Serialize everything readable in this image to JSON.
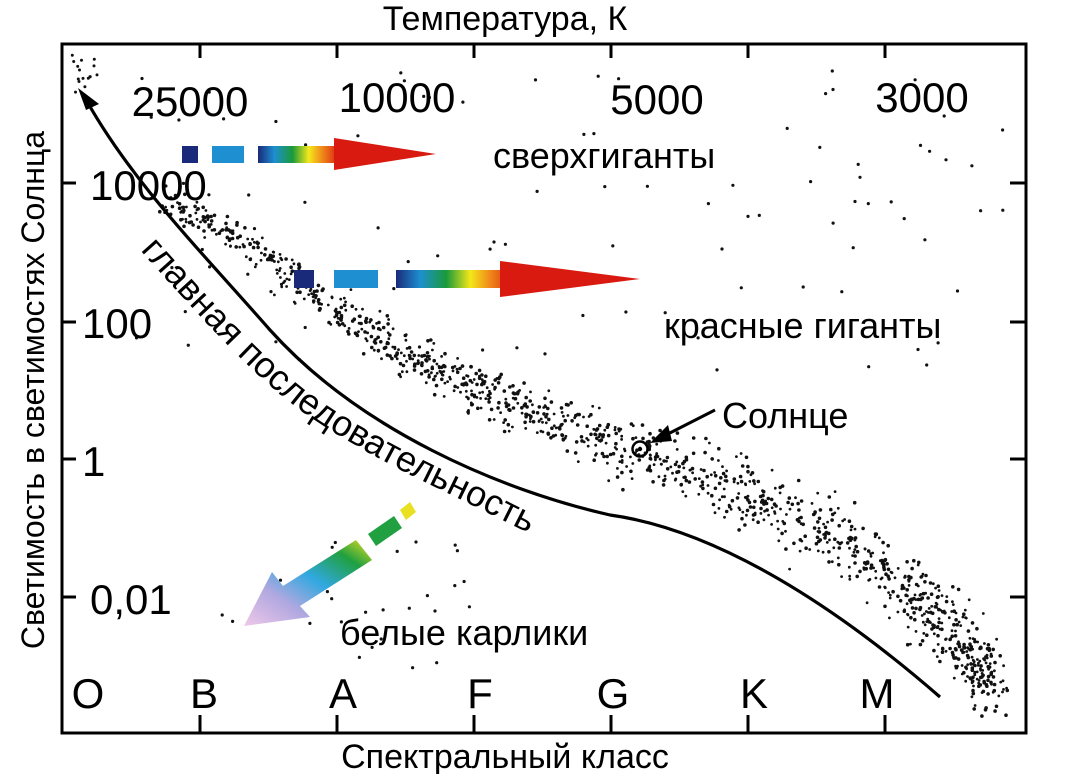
{
  "axes": {
    "top_title": "Температура, К",
    "left_title": "Светимость в светимостях Солнца",
    "bottom_title": "Спектральный класс",
    "temperature_ticks": [
      "25000",
      "10000",
      "5000",
      "3000"
    ],
    "luminosity_ticks": [
      "10000",
      "100",
      "1",
      "0,01"
    ],
    "spectral_classes": [
      "O",
      "B",
      "A",
      "F",
      "G",
      "K",
      "M"
    ]
  },
  "regions": {
    "supergiants": "сверхгиганты",
    "red_giants": "красные гиганты",
    "main_sequence": "главная последовательность",
    "white_dwarfs": "белые карлики",
    "sun": "Солнце"
  },
  "colors": {
    "frame": "#000000",
    "dots": "#111111",
    "arrow_gradient": [
      "#1a2a7a",
      "#1e8fd0",
      "#1a9a3a",
      "#f4e81a",
      "#f08a1a",
      "#d81a10"
    ],
    "dwarf_gradient": [
      "#f0c8e8",
      "#b0a8e0",
      "#30a8e0",
      "#20a040",
      "#e8e020"
    ]
  }
}
